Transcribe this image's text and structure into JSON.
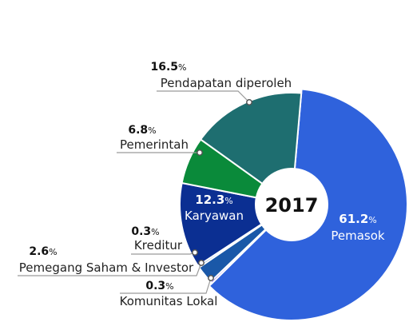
{
  "chart_data": {
    "type": "pie",
    "center_label": "2017",
    "unit": "%",
    "slices": [
      {
        "label": "Pemasok",
        "value": 61.2,
        "pct_text": "61.2",
        "color": "#2f62dc"
      },
      {
        "label": "Komunitas Lokal",
        "value": 0.3,
        "pct_text": "0.3",
        "color": "#7b52e6"
      },
      {
        "label": "Pemegang Saham & Investor",
        "value": 2.6,
        "pct_text": "2.6",
        "color": "#1a58a8"
      },
      {
        "label": "Kreditur",
        "value": 0.3,
        "pct_text": "0.3",
        "color": "#3a88cf"
      },
      {
        "label": "Karyawan",
        "value": 12.3,
        "pct_text": "12.3",
        "color": "#0b2f92"
      },
      {
        "label": "Pemerintah",
        "value": 6.8,
        "pct_text": "6.8",
        "color": "#0a8a3a"
      },
      {
        "label": "Pendapatan diperoleh",
        "value": 16.5,
        "pct_text": "16.5",
        "color": "#1e6e70"
      }
    ]
  }
}
